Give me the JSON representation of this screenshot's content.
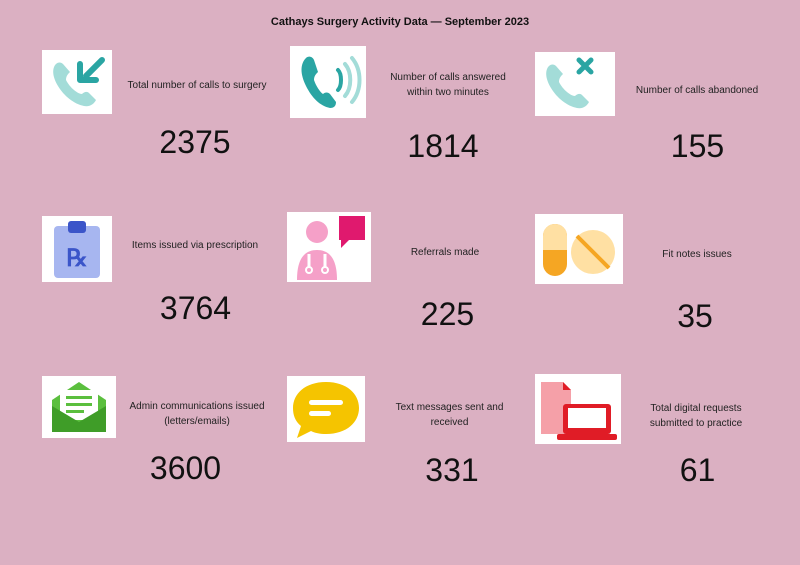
{
  "title": "Cathays Surgery Activity Data — September 2023",
  "stats": [
    {
      "icon": "phone-incoming-icon",
      "label": "Total number of calls to surgery",
      "value": "2375"
    },
    {
      "icon": "phone-ringing-icon",
      "label": "Number of calls answered within two minutes",
      "value": "1814"
    },
    {
      "icon": "phone-missed-icon",
      "label": "Number of calls abandoned",
      "value": "155"
    },
    {
      "icon": "prescription-clipboard-icon",
      "label": "Items issued via prescription",
      "value": "3764"
    },
    {
      "icon": "doctor-speech-icon",
      "label": "Referrals made",
      "value": "225"
    },
    {
      "icon": "pills-icon",
      "label": "Fit notes issues",
      "value": "35"
    },
    {
      "icon": "envelope-letter-icon",
      "label": "Admin communications issued (letters/emails)",
      "value": "3600"
    },
    {
      "icon": "chat-bubble-icon",
      "label": "Text messages sent and received",
      "value": "331"
    },
    {
      "icon": "digital-devices-icon",
      "label": "Total digital requests submitted to practice",
      "value": "61"
    }
  ]
}
